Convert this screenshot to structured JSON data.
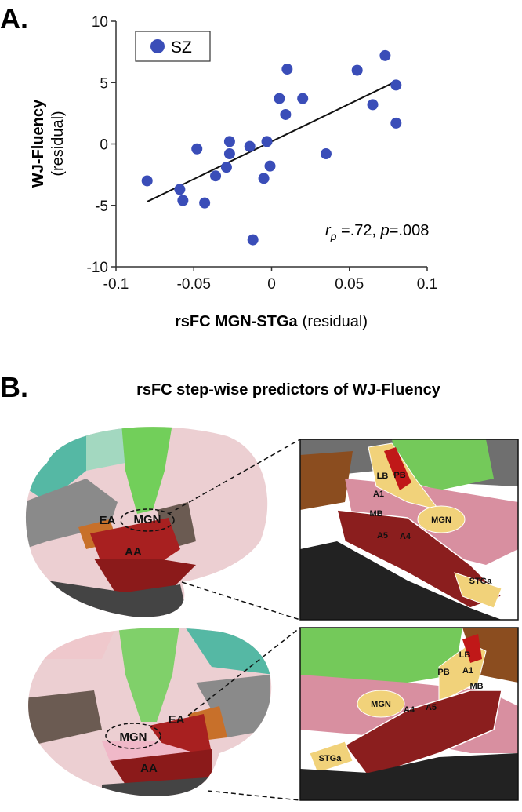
{
  "panel_a": {
    "label": "A."
  },
  "chart_data": {
    "type": "scatter",
    "x": [
      -0.08,
      -0.059,
      -0.057,
      -0.048,
      -0.043,
      -0.036,
      -0.029,
      -0.027,
      -0.027,
      -0.014,
      -0.012,
      -0.003,
      -0.005,
      -0.001,
      0.005,
      0.009,
      0.01,
      0.02,
      0.035,
      0.055,
      0.065,
      0.073,
      0.08,
      0.08
    ],
    "series": [
      {
        "name": "SZ",
        "color": "#3a4db8",
        "values": [
          -3.0,
          -3.7,
          -4.6,
          -0.4,
          -4.8,
          -2.6,
          -1.9,
          -0.8,
          0.2,
          -0.2,
          -7.8,
          0.2,
          -2.8,
          -1.8,
          3.7,
          2.4,
          6.1,
          3.7,
          -0.8,
          6.0,
          3.2,
          7.2,
          4.8,
          1.7
        ]
      }
    ],
    "trendline": {
      "x": [
        -0.08,
        0.08
      ],
      "y": [
        -4.7,
        5.1
      ]
    },
    "xlim": [
      -0.1,
      0.1
    ],
    "xticks": [
      -0.1,
      -0.05,
      0,
      0.05,
      0.1
    ],
    "ylim": [
      -10,
      10
    ],
    "yticks": [
      -10,
      -5,
      0,
      5,
      10
    ],
    "y_label": [
      "WJ-Fluency",
      "(residual)"
    ],
    "x_label": [
      "rsFC MGN-STGa",
      "(residual)"
    ],
    "annotation": [
      "r",
      "p",
      " =.72, ",
      "p",
      "=.008"
    ],
    "legend": "upper left",
    "grid": false
  },
  "panel_b": {
    "label": "B.",
    "title": "rsFC step-wise predictors of WJ-Fluency",
    "top_brain": [
      "EA",
      "MGN",
      "AA"
    ],
    "top_inset": [
      "LB",
      "PB",
      "A1",
      "MB",
      "A5",
      "A4",
      "MGN",
      "STGa"
    ],
    "bottom_brain": [
      "MGN",
      "EA",
      "AA"
    ],
    "bottom_inset": [
      "PB",
      "LB",
      "A1",
      "MB",
      "A4",
      "A5",
      "MGN",
      "STGa"
    ]
  }
}
